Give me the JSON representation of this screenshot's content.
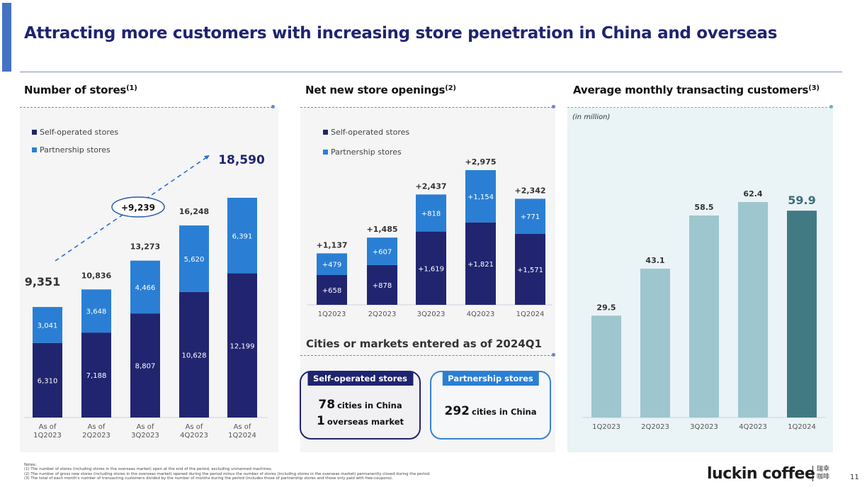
{
  "page": {
    "title": "Attracting more customers with increasing store penetration in China and overseas",
    "page_number": "11"
  },
  "colors": {
    "title_navy": "#1f2470",
    "self_operated": "#21256f",
    "partnership": "#2a7fd4",
    "customers_light": "#9ec6cf",
    "customers_highlight": "#427a84"
  },
  "sections": {
    "stores": {
      "title": "Number of stores",
      "footnote": "(1)"
    },
    "openings": {
      "title": "Net new store openings",
      "footnote": "(2)"
    },
    "customers": {
      "title": "Average monthly transacting customers",
      "footnote": "(3)",
      "unit": "(in million)"
    },
    "cities": {
      "title": "Cities or markets entered as of 2024Q1"
    }
  },
  "legend": {
    "self_operated": "Self-operated stores",
    "partnership": "Partnership stores"
  },
  "chart_data": [
    {
      "type": "bar",
      "stacked": true,
      "title": "Number of stores",
      "categories": [
        "As of 1Q2023",
        "As of 2Q2023",
        "As of 3Q2023",
        "As of 4Q2023",
        "As of 1Q2024"
      ],
      "category_lines": [
        [
          "As of",
          "1Q2023"
        ],
        [
          "As of",
          "2Q2023"
        ],
        [
          "As of",
          "3Q2023"
        ],
        [
          "As of",
          "4Q2023"
        ],
        [
          "As of",
          "1Q2024"
        ]
      ],
      "series": [
        {
          "name": "Self-operated stores",
          "values": [
            6310,
            7188,
            8807,
            10628,
            12199
          ],
          "labels": [
            "6,310",
            "7,188",
            "8,807",
            "10,628",
            "12,199"
          ]
        },
        {
          "name": "Partnership stores",
          "values": [
            3041,
            3648,
            4466,
            5620,
            6391
          ],
          "labels": [
            "3,041",
            "3,648",
            "4,466",
            "5,620",
            "6,391"
          ]
        }
      ],
      "totals": [
        9351,
        10836,
        13273,
        16248,
        18590
      ],
      "total_labels": [
        "9,351",
        "10,836",
        "13,273",
        "16,248",
        "18,590"
      ],
      "annotation": {
        "text": "+9,239",
        "from": "As of 1Q2023",
        "to": "As of 1Q2024"
      },
      "legend_position": "top-left",
      "ylim": [
        0,
        19000
      ],
      "grid": false
    },
    {
      "type": "bar",
      "stacked": true,
      "title": "Net new store openings",
      "categories": [
        "1Q2023",
        "2Q2023",
        "3Q2023",
        "4Q2023",
        "1Q2024"
      ],
      "series": [
        {
          "name": "Self-operated stores",
          "values": [
            658,
            878,
            1619,
            1821,
            1571
          ],
          "labels": [
            "+658",
            "+878",
            "+1,619",
            "+1,821",
            "+1,571"
          ]
        },
        {
          "name": "Partnership stores",
          "values": [
            479,
            607,
            818,
            1154,
            771
          ],
          "labels": [
            "+479",
            "+607",
            "+818",
            "+1,154",
            "+771"
          ]
        }
      ],
      "totals": [
        1137,
        1485,
        2437,
        2975,
        2342
      ],
      "total_labels": [
        "+1,137",
        "+1,485",
        "+2,437",
        "+2,975",
        "+2,342"
      ],
      "legend_position": "top-left",
      "ylim": [
        0,
        3200
      ],
      "grid": false
    },
    {
      "type": "bar",
      "title": "Average monthly transacting customers",
      "ylabel": "(in million)",
      "categories": [
        "1Q2023",
        "2Q2023",
        "3Q2023",
        "4Q2023",
        "1Q2024"
      ],
      "values": [
        29.5,
        43.1,
        58.5,
        62.4,
        59.9
      ],
      "labels": [
        "29.5",
        "43.1",
        "58.5",
        "62.4",
        "59.9"
      ],
      "highlight_index": 4,
      "ylim": [
        0,
        70
      ],
      "grid": false
    }
  ],
  "cities": {
    "self_operated": {
      "tag": "Self-operated stores",
      "line1_number": "78",
      "line1_text": "cities in China",
      "line2_number": "1",
      "line2_text": "overseas market"
    },
    "partnership": {
      "tag": "Partnership stores",
      "line1_number": "292",
      "line1_text": "cities in China"
    }
  },
  "notes": {
    "header": "Notes:",
    "items": [
      "(1)   The number of stores (including stores in the overseas market) open at the end of the period, excluding unmanned machines.",
      "(2)   The number of gross new stores (including stores in the overseas market) opened during the period minus the number of stores (including stores in the overseas market) permanently closed during the period.",
      "(3)   The total of each month's number of transacting customers divided by the number of months during the period (includes those of partnership stores and those only paid with free-coupons)."
    ]
  },
  "brand": {
    "logo_text": "luckin coffee",
    "logo_cn_line1": "瑞幸",
    "logo_cn_line2": "咖啡"
  }
}
